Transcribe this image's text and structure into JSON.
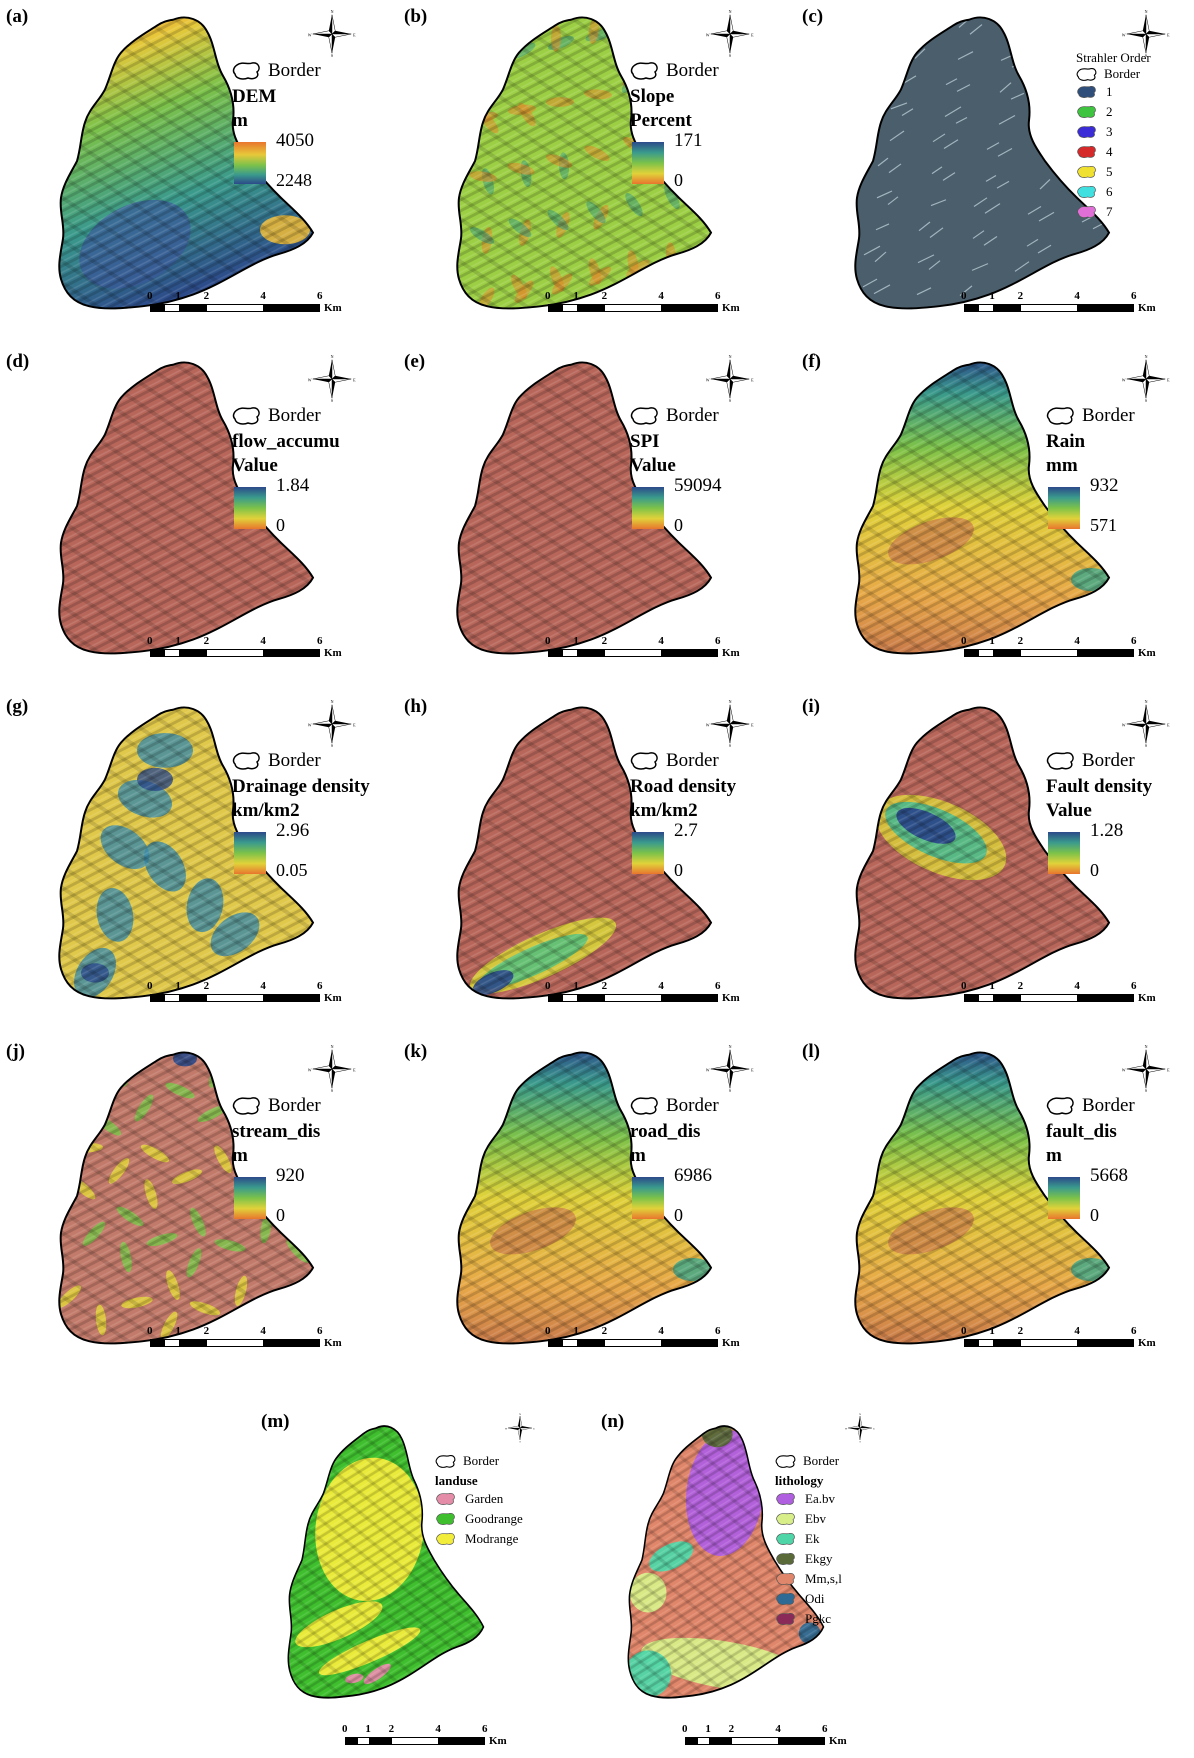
{
  "panels": [
    {
      "id": "a",
      "label": "(a)",
      "border": "Border",
      "title": "DEM",
      "unit": "m",
      "max": "4050",
      "min": "2248",
      "ramp": "dem",
      "fill": "dem"
    },
    {
      "id": "b",
      "label": "(b)",
      "border": "Border",
      "title": "Slope",
      "unit": "Percent",
      "max": "171",
      "min": "0",
      "ramp": "std",
      "fill": "slope"
    },
    {
      "id": "c",
      "label": "(c)",
      "border": "Border",
      "title": "Strahler Order",
      "categories": [
        {
          "name": "1",
          "color": "#2f4f7a"
        },
        {
          "name": "2",
          "color": "#3ec43e"
        },
        {
          "name": "3",
          "color": "#3a2cd6"
        },
        {
          "name": "4",
          "color": "#d62a2a"
        },
        {
          "name": "5",
          "color": "#f0e030"
        },
        {
          "name": "6",
          "color": "#40e0e0"
        },
        {
          "name": "7",
          "color": "#e070d8"
        }
      ],
      "fill": "strahler"
    },
    {
      "id": "d",
      "label": "(d)",
      "border": "Border",
      "title": "flow_accumu",
      "unit": "Value",
      "max": "1.84",
      "min": "0",
      "ramp": "std",
      "fill": "brown"
    },
    {
      "id": "e",
      "label": "(e)",
      "border": "Border",
      "title": "SPI",
      "unit": "Value",
      "max": "59094",
      "min": "0",
      "ramp": "std",
      "fill": "brown"
    },
    {
      "id": "f",
      "label": "(f)",
      "border": "Border",
      "title": "Rain",
      "unit": "mm",
      "max": "932",
      "min": "571",
      "ramp": "std",
      "fill": "rain"
    },
    {
      "id": "g",
      "label": "(g)",
      "border": "Border",
      "title": "Drainage density",
      "unit": "km/km2",
      "max": "2.96",
      "min": "0.05",
      "ramp": "std",
      "fill": "drain"
    },
    {
      "id": "h",
      "label": "(h)",
      "border": "Border",
      "title": "Road density",
      "unit": "km/km2",
      "max": "2.7",
      "min": "0",
      "ramp": "std",
      "fill": "road"
    },
    {
      "id": "i",
      "label": "(i)",
      "border": "Border",
      "title": "Fault density",
      "unit": "Value",
      "max": "1.28",
      "min": "0",
      "ramp": "std",
      "fill": "fault"
    },
    {
      "id": "j",
      "label": "(j)",
      "border": "Border",
      "title": "stream_dis",
      "unit": "m",
      "max": "920",
      "min": "0",
      "ramp": "std",
      "fill": "stream"
    },
    {
      "id": "k",
      "label": "(k)",
      "border": "Border",
      "title": "road_dis",
      "unit": "m",
      "max": "6986",
      "min": "0",
      "ramp": "std",
      "fill": "rain"
    },
    {
      "id": "l",
      "label": "(l)",
      "border": "Border",
      "title": "fault_dis",
      "unit": "m",
      "max": "5668",
      "min": "0",
      "ramp": "std",
      "fill": "rain"
    },
    {
      "id": "m",
      "label": "(m)",
      "border": "Border",
      "title": "landuse",
      "categories": [
        {
          "name": "Garden",
          "color": "#e58ca8"
        },
        {
          "name": "Goodrange",
          "color": "#3fbf2e"
        },
        {
          "name": "Modrange",
          "color": "#f2ec3a"
        }
      ],
      "fill": "landuse"
    },
    {
      "id": "n",
      "label": "(n)",
      "border": "Border",
      "title": "lithology",
      "categories": [
        {
          "name": "Ea.bv",
          "color": "#b05fe0"
        },
        {
          "name": "Ebv",
          "color": "#d8ee88"
        },
        {
          "name": "Ek",
          "color": "#4fd6a8"
        },
        {
          "name": "Ekgy",
          "color": "#5a6a38"
        },
        {
          "name": "Mm,s,l",
          "color": "#e0866a"
        },
        {
          "name": "Odi",
          "color": "#2e6a94"
        },
        {
          "name": "Pgkc",
          "color": "#8a2a58"
        }
      ],
      "fill": "litho"
    }
  ],
  "scale": {
    "ticks": [
      "0",
      "1",
      "2",
      "4",
      "6"
    ],
    "unit": "Km"
  },
  "compass": {
    "n": "N",
    "s": "S",
    "e": "E",
    "w": "W"
  }
}
